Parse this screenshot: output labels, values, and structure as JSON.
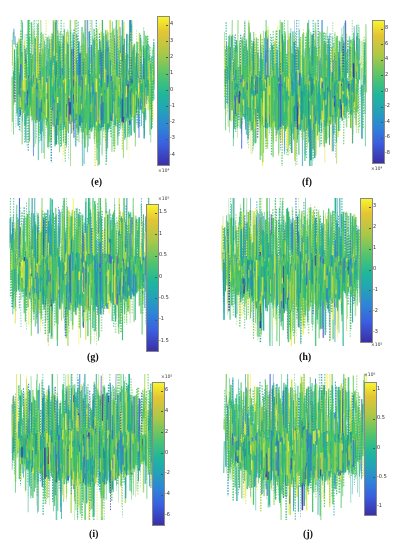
{
  "panels": [
    {
      "label": "(e)",
      "ticks": [
        "4",
        "3",
        "2",
        "1",
        "0",
        "-1",
        "-2",
        "-3",
        "-4"
      ],
      "exponent": "×10⁴",
      "seed": 11
    },
    {
      "label": "(f)",
      "ticks": [
        "8",
        "6",
        "4",
        "2",
        "0",
        "-2",
        "-4",
        "-6",
        "-8"
      ],
      "exponent": "×10⁴",
      "seed": 23
    },
    {
      "label": "(g)",
      "ticks": [
        "1.5",
        "1",
        "0.5",
        "0",
        "-0.5",
        "-1",
        "-1.5"
      ],
      "exponent": "×10⁵",
      "seed": 37
    },
    {
      "label": "(h)",
      "ticks": [
        "3",
        "2",
        "1",
        "0",
        "-1",
        "-2",
        "-3"
      ],
      "exponent": "×10⁵",
      "seed": 41
    },
    {
      "label": "(i)",
      "ticks": [
        "6",
        "4",
        "2",
        "0",
        "-2",
        "-4",
        "-6"
      ],
      "exponent": "×10⁵",
      "seed": 53
    },
    {
      "label": "(j)",
      "ticks": [
        "1",
        "0.5",
        "0",
        "-0.5",
        "-1"
      ],
      "exponent": "×10⁶",
      "seed": 67
    }
  ]
}
